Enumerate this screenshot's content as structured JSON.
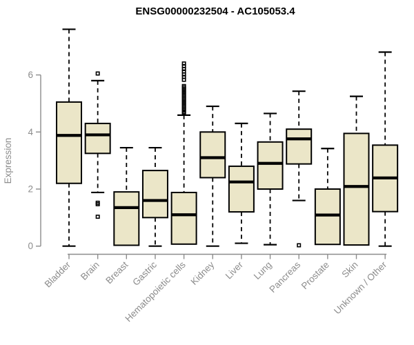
{
  "chart_data": {
    "type": "boxplot",
    "title": "ENSG00000232504 - AC105053.4",
    "ylabel": "Expression",
    "xlabel": "",
    "ylim": [
      0,
      7.9
    ],
    "yticks": [
      0,
      2,
      4,
      6
    ],
    "grid": false,
    "legend": "none",
    "box_fill": "#EBE6C8",
    "box_stroke": "#000000",
    "median_color": "#000000",
    "axis_color": "#8c8c8c",
    "label_color": "#8c8c8c",
    "categories": [
      "Bladder",
      "Brain",
      "Breast",
      "Gastric",
      "Hematopoietic cells",
      "Kidney",
      "Liver",
      "Lung",
      "Pancreas",
      "Prostate",
      "Skin",
      "Unknown / Other"
    ],
    "boxes": [
      {
        "label": "Bladder",
        "whisker_low": 0,
        "q1": 2.2,
        "median": 3.88,
        "q3": 5.05,
        "whisker_high": 7.6,
        "outliers": []
      },
      {
        "label": "Brain",
        "whisker_low": 1.88,
        "q1": 3.25,
        "median": 3.9,
        "q3": 4.3,
        "whisker_high": 5.8,
        "outliers": [
          6.05,
          1.52,
          1.47,
          1.03
        ]
      },
      {
        "label": "Breast",
        "whisker_low": 0,
        "q1": 0.03,
        "median": 1.35,
        "q3": 1.9,
        "whisker_high": 3.45,
        "outliers": []
      },
      {
        "label": "Gastric",
        "whisker_low": 0,
        "q1": 1.0,
        "median": 1.6,
        "q3": 2.65,
        "whisker_high": 3.45,
        "outliers": []
      },
      {
        "label": "Hematopoietic cells",
        "whisker_low": 0,
        "q1": 0.07,
        "median": 1.1,
        "q3": 1.88,
        "whisker_high": 4.59,
        "outliers": [
          6.4,
          6.31,
          6.21,
          6.12,
          6.02,
          5.93,
          5.83,
          5.61,
          5.56,
          5.51,
          5.46,
          5.41,
          5.36,
          5.31,
          5.26,
          5.21,
          5.16,
          5.11,
          5.06,
          5.01,
          4.96,
          4.91,
          4.86,
          4.81,
          4.76,
          4.71,
          4.67
        ]
      },
      {
        "label": "Kidney",
        "whisker_low": 0,
        "q1": 2.4,
        "median": 3.1,
        "q3": 4.0,
        "whisker_high": 4.9,
        "outliers": []
      },
      {
        "label": "Liver",
        "whisker_low": 0.1,
        "q1": 1.2,
        "median": 2.25,
        "q3": 2.8,
        "whisker_high": 4.3,
        "outliers": []
      },
      {
        "label": "Lung",
        "whisker_low": 0.05,
        "q1": 2.0,
        "median": 2.9,
        "q3": 3.65,
        "whisker_high": 4.65,
        "outliers": []
      },
      {
        "label": "Pancreas",
        "whisker_low": 1.6,
        "q1": 2.88,
        "median": 3.76,
        "q3": 4.1,
        "whisker_high": 5.43,
        "outliers": [
          0.03
        ]
      },
      {
        "label": "Prostate",
        "whisker_low": 0,
        "q1": 0.06,
        "median": 1.09,
        "q3": 2.0,
        "whisker_high": 3.42,
        "outliers": []
      },
      {
        "label": "Skin",
        "whisker_low": 0,
        "q1": 0.04,
        "median": 2.09,
        "q3": 3.95,
        "whisker_high": 5.25,
        "outliers": []
      },
      {
        "label": "Unknown / Other",
        "whisker_low": 0,
        "q1": 1.21,
        "median": 2.39,
        "q3": 3.54,
        "whisker_high": 6.8,
        "outliers": []
      }
    ]
  }
}
